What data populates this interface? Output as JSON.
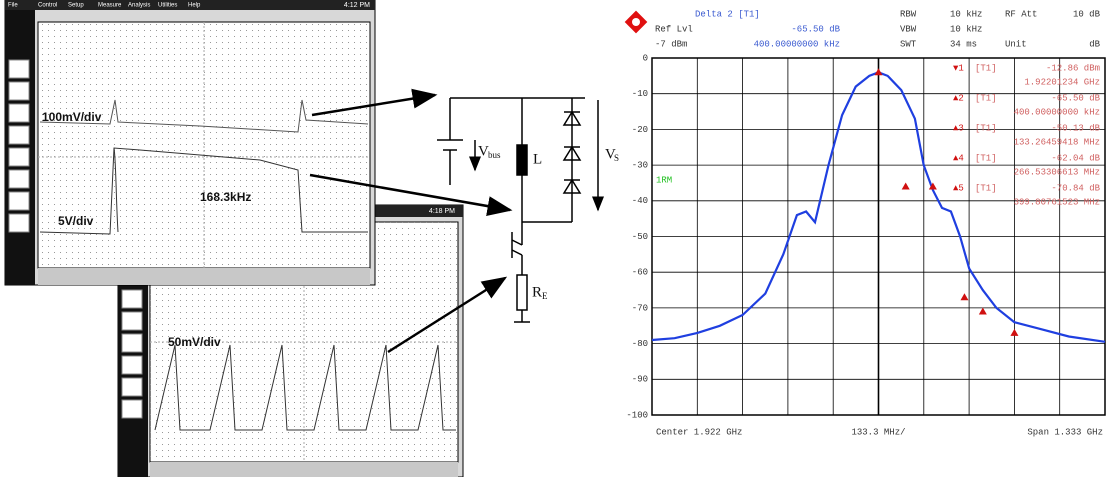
{
  "scope_top": {
    "menu": [
      "File",
      "Control",
      "Setup",
      "Measure",
      "Analysis",
      "Utilities",
      "Help"
    ],
    "time": "4:12 PM",
    "volts": "100mV/div",
    "freq": "168.3kHz",
    "volts2": "5V/div"
  },
  "scope_bottom": {
    "time": "4:18 PM",
    "volts": "50mV/div"
  },
  "circuit": {
    "vbus": "V",
    "vbus_sub": "bus",
    "inductor": "L",
    "vs": "V",
    "vs_sub": "S",
    "re": "R",
    "re_sub": "E"
  },
  "header": {
    "delta": "Delta 2 [T1]",
    "ref_lvl": "Ref Lvl",
    "delta_value": "-65.50 dB",
    "ref_value": "-7 dBm",
    "delta_freq": "400.00000000 kHz",
    "rbw": "RBW",
    "rbw_value": "10 kHz",
    "vbw": "VBW",
    "vbw_value": "10 kHz",
    "swt": "SWT",
    "swt_value": "34 ms",
    "rf_att": "RF Att",
    "rf_att_value": "10 dB",
    "unit": "Unit",
    "unit_value": "dB"
  },
  "marker_table": [
    {
      "symbol": "▼1",
      "trace": "[T1]",
      "level": "-12.86 dBm",
      "freq": "1.92201234 GHz"
    },
    {
      "symbol": "▲2",
      "trace": "[T1]",
      "level": "-65.50 dB",
      "freq": "400.00000000 kHz"
    },
    {
      "symbol": "▲3",
      "trace": "[T1]",
      "level": "-50.13 dB",
      "freq": "133.26459418 MHz"
    },
    {
      "symbol": "▲4",
      "trace": "[T1]",
      "level": "-62.04 dB",
      "freq": "266.53306613 MHz"
    },
    {
      "symbol": "▲5",
      "trace": "[T1]",
      "level": "-70.84 dB",
      "freq": "399.80761523 MHz"
    }
  ],
  "footer": {
    "center": "Center 1.922 GHz",
    "per_div": "133.3 MHz/",
    "span": "Span 1.333 GHz"
  },
  "chart_data": {
    "type": "line",
    "trace_label": "1RM",
    "color": "#1f3fe0",
    "marker_color": "#d01010",
    "xlim": [
      1.2555,
      2.5885
    ],
    "ylim": [
      -100,
      0
    ],
    "yticks": [
      0,
      -10,
      -20,
      -30,
      -40,
      -50,
      -60,
      -70,
      -80,
      -90,
      -100
    ],
    "grid": true,
    "x": [
      1.2555,
      1.322,
      1.389,
      1.455,
      1.522,
      1.589,
      1.642,
      1.682,
      1.709,
      1.735,
      1.775,
      1.815,
      1.855,
      1.895,
      1.922,
      1.949,
      1.989,
      2.029,
      2.055,
      2.082,
      2.109,
      2.135,
      2.162,
      2.189,
      2.229,
      2.269,
      2.322,
      2.402,
      2.482,
      2.5885
    ],
    "values": [
      -79,
      -78.5,
      -77,
      -75,
      -72,
      -66,
      -55,
      -44,
      -43,
      -46,
      -30,
      -16,
      -8,
      -5,
      -4,
      -5,
      -9,
      -17,
      -30,
      -37,
      -42,
      -43,
      -50,
      -59,
      -65,
      -70,
      -74,
      -76,
      -78,
      -79.5
    ],
    "markers": [
      {
        "x": 1.922,
        "value": -4
      },
      {
        "x": 2.002,
        "value": -36
      },
      {
        "x": 2.082,
        "value": -36
      },
      {
        "x": 2.175,
        "value": -67
      },
      {
        "x": 2.229,
        "value": -71
      },
      {
        "x": 2.322,
        "value": -77
      }
    ]
  }
}
